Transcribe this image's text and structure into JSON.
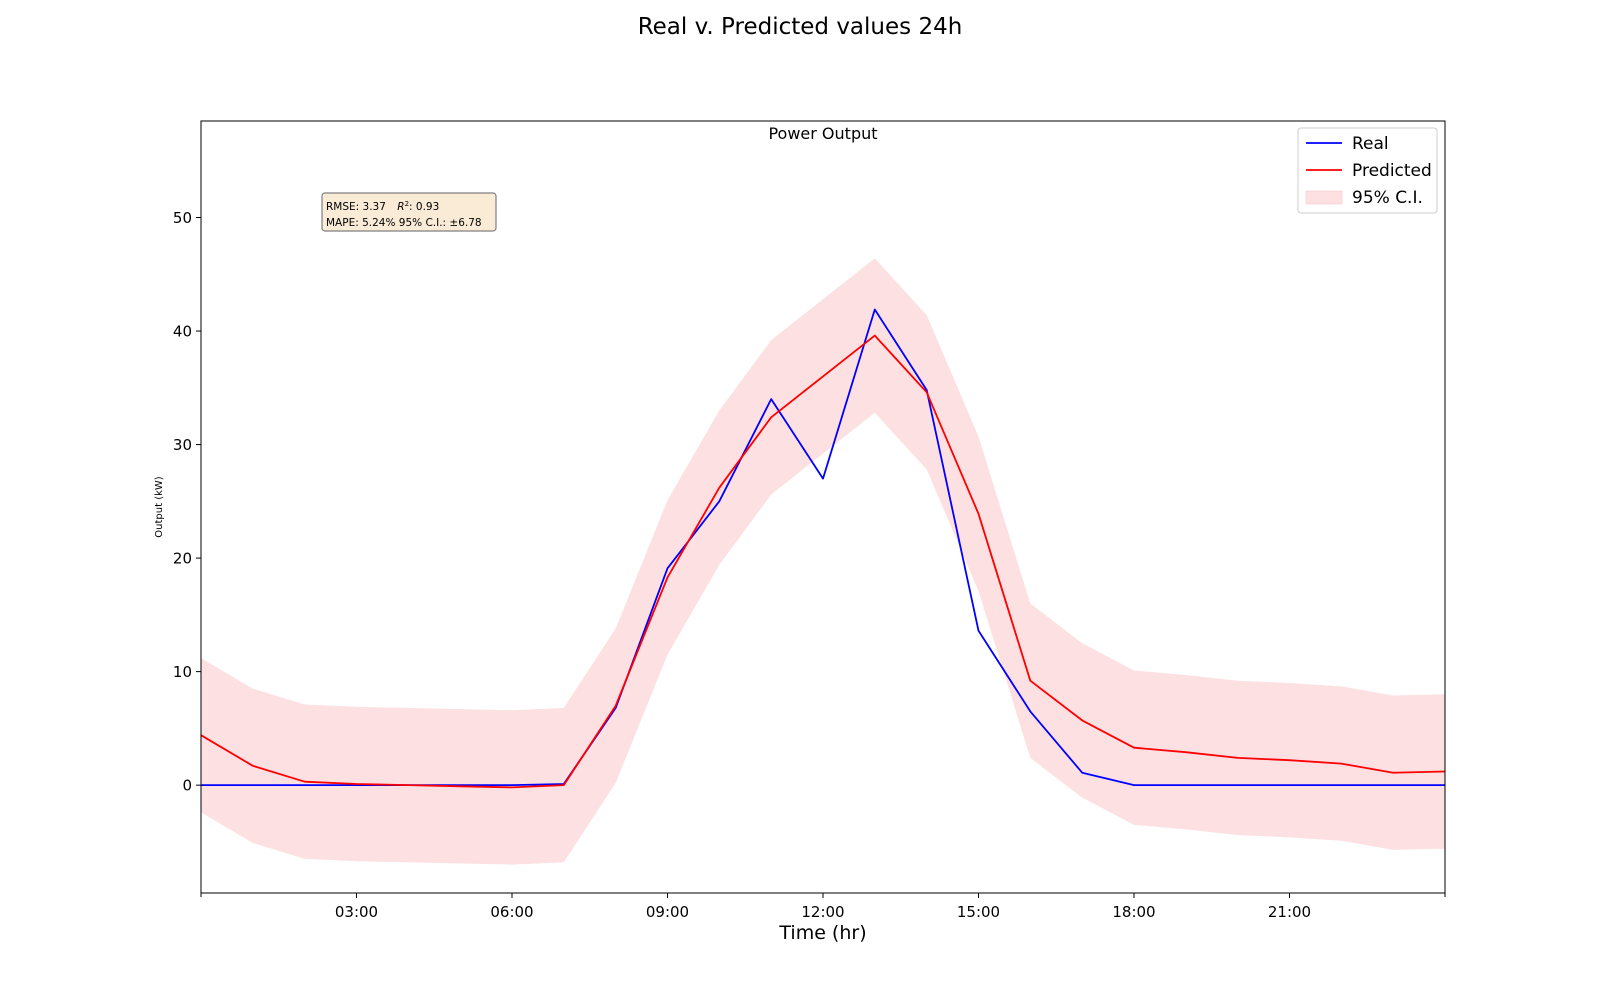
{
  "figure": {
    "suptitle": "Real v. Predicted values 24h"
  },
  "colors": {
    "real": "#0000ff",
    "predicted": "#ff0000",
    "ci_fill": "#fde0e2",
    "stats_box_fill": "#faebd7",
    "stats_box_edge": "#7f7f7f"
  },
  "chart_data": {
    "type": "line",
    "title": "Power Output",
    "xlabel": "Time (hr)",
    "ylabel": "Output (kW)",
    "xlim": [
      0,
      24
    ],
    "ylim": [
      -9.5,
      58.5
    ],
    "x_tick_values": [
      3,
      6,
      9,
      12,
      15,
      18,
      21
    ],
    "x_tick_labels": [
      "03:00",
      "06:00",
      "09:00",
      "12:00",
      "15:00",
      "18:00",
      "21:00"
    ],
    "y_ticks": [
      0,
      10,
      20,
      30,
      40,
      50
    ],
    "grid": false,
    "legend_position": "top-right",
    "x": [
      0,
      1,
      2,
      3,
      4,
      5,
      6,
      7,
      8,
      9,
      10,
      11,
      12,
      13,
      14,
      15,
      16,
      17,
      18,
      19,
      20,
      21,
      22,
      23,
      24
    ],
    "series": [
      {
        "name": "Real",
        "color": "#0000ff",
        "values": [
          0,
          0,
          0,
          0,
          0,
          0,
          0,
          0.1,
          6.8,
          19.1,
          25.0,
          34.0,
          27.0,
          41.9,
          34.8,
          13.6,
          6.5,
          1.1,
          0,
          0,
          0,
          0,
          0,
          0,
          0
        ]
      },
      {
        "name": "Predicted",
        "color": "#ff0000",
        "values": [
          4.4,
          1.7,
          0.3,
          0.1,
          0.0,
          -0.1,
          -0.2,
          0.0,
          7.0,
          18.3,
          26.2,
          32.4,
          36.0,
          39.6,
          34.6,
          23.9,
          9.2,
          5.7,
          3.3,
          2.9,
          2.4,
          2.2,
          1.9,
          1.1,
          1.2
        ]
      }
    ],
    "confidence_band": {
      "name": "95% C.I.",
      "lower": [
        -2.4,
        -5.1,
        -6.5,
        -6.7,
        -6.8,
        -6.9,
        -7.0,
        -6.8,
        0.2,
        11.5,
        19.4,
        25.6,
        29.2,
        32.8,
        27.8,
        17.1,
        2.4,
        -1.1,
        -3.5,
        -3.9,
        -4.4,
        -4.6,
        -4.9,
        -5.7,
        -5.6
      ],
      "upper": [
        11.2,
        8.5,
        7.1,
        6.9,
        6.8,
        6.7,
        6.6,
        6.8,
        13.8,
        25.1,
        33.0,
        39.2,
        42.8,
        46.4,
        41.4,
        30.7,
        16.0,
        12.5,
        10.1,
        9.7,
        9.2,
        9.0,
        8.7,
        7.9,
        8.0
      ]
    },
    "stats_box": {
      "line1_rmse": "RMSE: 3.37",
      "line1_r2_prefix": "R",
      "line1_r2_sup": "2",
      "line1_r2_value": ": 0.93",
      "line2": "MAPE: 5.24%  95% C.I.: ±6.78"
    }
  }
}
